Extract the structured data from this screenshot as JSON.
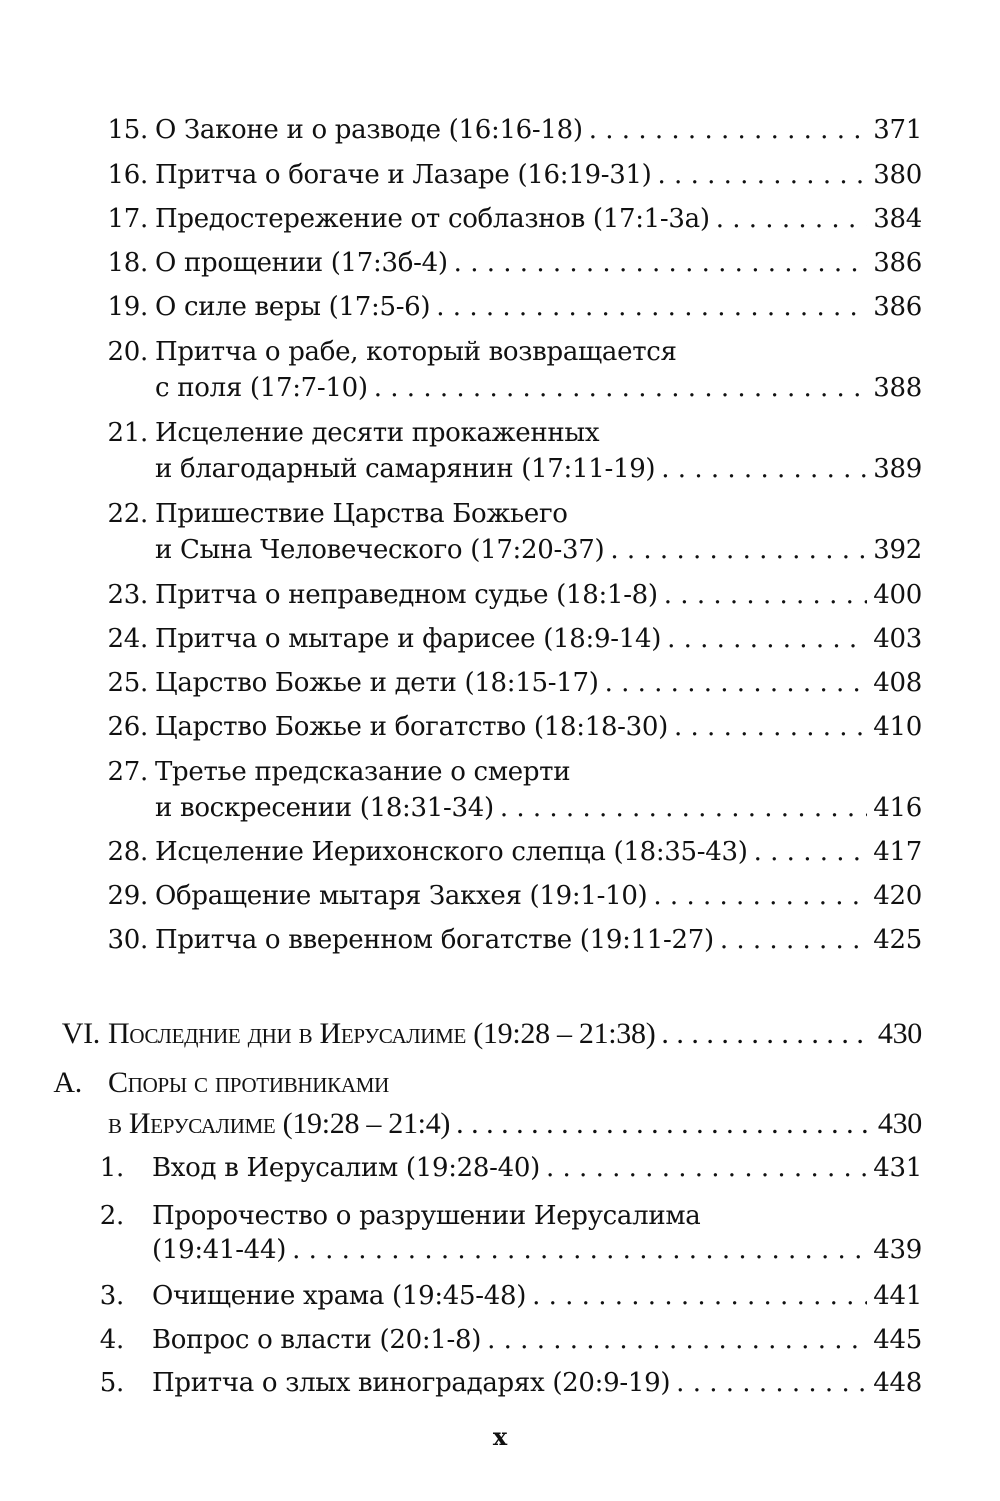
{
  "entries": [
    {
      "num": "15.",
      "lines": [
        "О Законе и о разводе (16:16-18)"
      ],
      "page": "371"
    },
    {
      "num": "16.",
      "lines": [
        "Притча о богаче и Лазаре (16:19-31)"
      ],
      "page": "380"
    },
    {
      "num": "17.",
      "lines": [
        "Предостережение от соблазнов (17:1-3а)"
      ],
      "page": "384"
    },
    {
      "num": "18.",
      "lines": [
        "О прощении (17:3б-4)"
      ],
      "page": "386"
    },
    {
      "num": "19.",
      "lines": [
        "О силе веры (17:5-6)"
      ],
      "page": "386"
    },
    {
      "num": "20.",
      "lines": [
        "Притча о рабе, который возвращается",
        "с поля (17:7-10)"
      ],
      "page": "388"
    },
    {
      "num": "21.",
      "lines": [
        "Исцеление десяти прокаженных",
        "и благодарный самарянин (17:11-19)"
      ],
      "page": "389"
    },
    {
      "num": "22.",
      "lines": [
        "Пришествие Царства Божьего",
        "и Сына Человеческого (17:20-37)"
      ],
      "page": "392"
    },
    {
      "num": "23.",
      "lines": [
        "Притча о неправедном судье (18:1-8)"
      ],
      "page": "400"
    },
    {
      "num": "24.",
      "lines": [
        "Притча о мытаре и фарисее (18:9-14)"
      ],
      "page": "403"
    },
    {
      "num": "25.",
      "lines": [
        "Царство Божье и дети (18:15-17)"
      ],
      "page": "408"
    },
    {
      "num": "26.",
      "lines": [
        "Царство Божье и богатство (18:18-30)"
      ],
      "page": "410"
    },
    {
      "num": "27.",
      "lines": [
        "Третье предсказание о смерти",
        "и воскресении (18:31-34)"
      ],
      "page": "416"
    },
    {
      "num": "28.",
      "lines": [
        "Исцеление Иерихонского слепца (18:35-43)"
      ],
      "page": "417"
    },
    {
      "num": "29.",
      "lines": [
        "Обращение мытаря Закхея (19:1-10)"
      ],
      "page": "420"
    },
    {
      "num": "30.",
      "lines": [
        "Притча о вверенном богатстве (19:11-27)"
      ],
      "page": "425"
    }
  ],
  "section": {
    "num": "VI.",
    "lines": [
      "Последние дни в Иерусалиме (19:28 – 21:38)"
    ],
    "page": "430"
  },
  "subsection": {
    "num": "A.",
    "lines": [
      "Споры с противниками",
      "в Иерусалиме (19:28 – 21:4)"
    ],
    "page": "430"
  },
  "subentries": [
    {
      "num": "1.",
      "lines": [
        "Вход в Иерусалим (19:28-40)"
      ],
      "page": "431"
    },
    {
      "num": "2.",
      "lines": [
        "Пророчество о разрушении Иерусалима",
        "(19:41-44)"
      ],
      "page": "439"
    },
    {
      "num": "3.",
      "lines": [
        "Очищение храма (19:45-48)"
      ],
      "page": "441"
    },
    {
      "num": "4.",
      "lines": [
        "Вопрос о власти (20:1-8)"
      ],
      "page": "445"
    },
    {
      "num": "5.",
      "lines": [
        "Притча о злых виноградарях (20:9-19)"
      ],
      "page": "448"
    }
  ],
  "page_number": "x"
}
